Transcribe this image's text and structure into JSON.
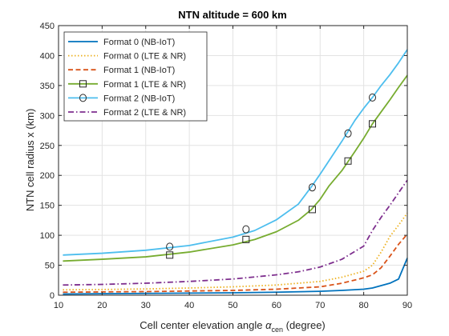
{
  "chart_data": {
    "type": "line",
    "title": "NTN altitude = 600 km",
    "xlabel": {
      "main": "Cell center elevation angle ",
      "symbol": "α",
      "subscript": "cen",
      "suffix": " (degree)"
    },
    "ylabel": "NTN cell radius x (km)",
    "xlim": [
      10,
      90
    ],
    "ylim": [
      0,
      450
    ],
    "xticks": [
      10,
      20,
      30,
      40,
      50,
      60,
      70,
      80,
      90
    ],
    "yticks": [
      0,
      50,
      100,
      150,
      200,
      250,
      300,
      350,
      400,
      450
    ],
    "grid": true,
    "legend_position": "top-left",
    "series": [
      {
        "name": "Format 0 (NB-IoT)",
        "color": "#0072bd",
        "line_style": "solid",
        "marker": "none",
        "x": [
          11,
          20,
          30,
          40,
          50,
          60,
          70,
          75,
          80,
          82,
          84,
          86,
          88,
          90
        ],
        "y": [
          2,
          2.5,
          3,
          3.5,
          4,
          5,
          6.5,
          8,
          10,
          12,
          16,
          20,
          27,
          62
        ]
      },
      {
        "name": "Format 0 (LTE & NR)",
        "color": "#edb120",
        "line_style": "dotted",
        "marker": "none",
        "x": [
          11,
          20,
          30,
          40,
          50,
          60,
          70,
          75,
          80,
          82,
          84,
          86,
          88,
          90
        ],
        "y": [
          9,
          9.5,
          10.5,
          12,
          14,
          17,
          23,
          30,
          40,
          50,
          72,
          98,
          117,
          137
        ]
      },
      {
        "name": "Format 1 (NB-IoT)",
        "color": "#d95319",
        "line_style": "dashed",
        "marker": "none",
        "x": [
          11,
          20,
          30,
          40,
          50,
          60,
          70,
          75,
          80,
          82,
          84,
          86,
          88,
          90
        ],
        "y": [
          5,
          5.5,
          6,
          7,
          8,
          10,
          14,
          20,
          29,
          34,
          46,
          65,
          85,
          102
        ]
      },
      {
        "name": "Format 1 (LTE & NR)",
        "color": "#77ac30",
        "line_style": "solid",
        "marker": "square",
        "x": [
          11,
          20,
          30,
          40,
          50,
          55,
          60,
          65,
          68,
          70,
          72,
          75,
          78,
          80,
          82,
          84,
          86,
          88,
          90
        ],
        "y": [
          57,
          60,
          64,
          72,
          84,
          93,
          106,
          125,
          143,
          160,
          182,
          208,
          240,
          262,
          286,
          306,
          326,
          347,
          367
        ],
        "marker_points": [
          [
            35.5,
            67
          ],
          [
            53,
            93
          ],
          [
            68.2,
            143
          ],
          [
            76.4,
            224
          ],
          [
            82,
            286
          ]
        ]
      },
      {
        "name": "Format 2 (NB-IoT)",
        "color": "#4dbeee",
        "line_style": "solid",
        "marker": "circle",
        "x": [
          11,
          20,
          30,
          40,
          50,
          55,
          60,
          65,
          68,
          70,
          72,
          75,
          78,
          80,
          82,
          84,
          86,
          88,
          90
        ],
        "y": [
          67,
          70,
          75,
          83,
          97,
          108,
          126,
          152,
          181,
          202,
          224,
          257,
          292,
          312,
          330,
          350,
          368,
          388,
          410
        ],
        "marker_points": [
          [
            35.5,
            81
          ],
          [
            53,
            110
          ],
          [
            68.2,
            180
          ],
          [
            76.4,
            270
          ],
          [
            82,
            330
          ]
        ]
      },
      {
        "name": "Format 2 (LTE & NR)",
        "color": "#7e2f8e",
        "line_style": "dashdot",
        "marker": "none",
        "x": [
          11,
          20,
          30,
          40,
          50,
          60,
          65,
          70,
          75,
          80,
          82,
          84,
          86,
          88,
          90
        ],
        "y": [
          17,
          18,
          20,
          23,
          27,
          34,
          39,
          47,
          60,
          82,
          108,
          130,
          150,
          171,
          192
        ]
      }
    ]
  }
}
